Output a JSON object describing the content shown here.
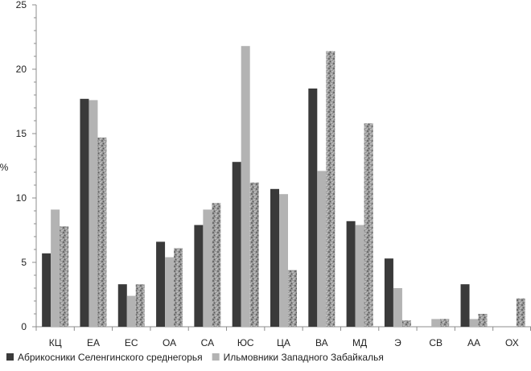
{
  "chart_data": {
    "type": "bar",
    "title": "",
    "xlabel": "",
    "ylabel": "%",
    "ylim": [
      0,
      25
    ],
    "yticks": [
      0,
      5,
      10,
      15,
      20,
      25
    ],
    "grid": false,
    "legend_position": "bottom",
    "categories": [
      "КЦ",
      "ЕА",
      "ЕС",
      "ОА",
      "СА",
      "ЮС",
      "ЦА",
      "ВА",
      "МД",
      "Э",
      "СВ",
      "АА",
      "ОХ"
    ],
    "series": [
      {
        "name": "Абрикосники Селенгинского среднегорья",
        "color": "#3a3a3a",
        "pattern": "solid",
        "values": [
          5.7,
          17.7,
          3.3,
          6.6,
          7.9,
          12.8,
          10.7,
          18.5,
          8.2,
          5.3,
          0,
          3.3,
          0
        ]
      },
      {
        "name": "Ильмовники Западного Забайкалья",
        "color": "#b3b3b3",
        "pattern": "solid",
        "values": [
          9.1,
          17.6,
          2.4,
          5.4,
          9.1,
          21.8,
          10.3,
          12.1,
          7.9,
          3.0,
          0.6,
          0.6,
          0
        ]
      },
      {
        "name": "",
        "color": "#8a8a8a",
        "pattern": "speckled",
        "values": [
          7.8,
          14.7,
          3.3,
          6.1,
          9.6,
          11.2,
          4.4,
          21.4,
          15.8,
          0.5,
          0.6,
          1.0,
          2.2
        ]
      }
    ]
  }
}
